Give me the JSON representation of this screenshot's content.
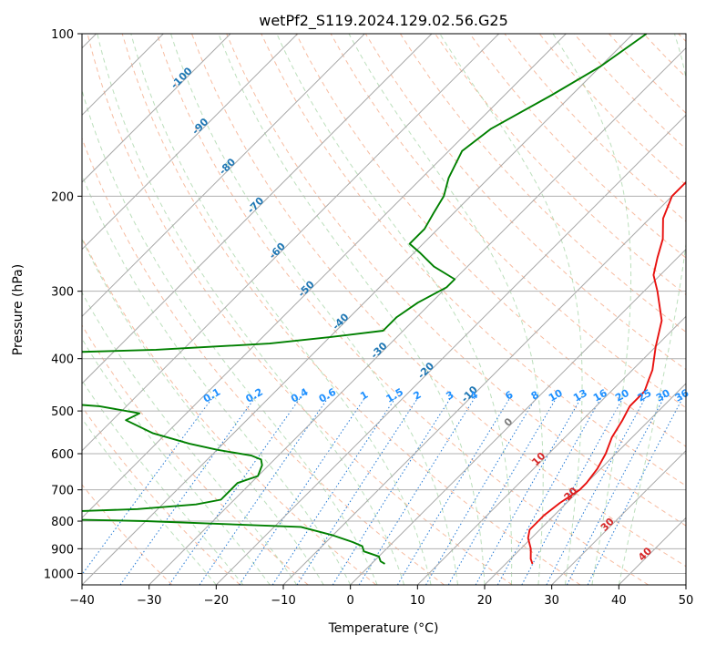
{
  "chart_data": {
    "type": "line",
    "subtype": "skew-T log-p diagram",
    "title": "wetPf2_S119.2024.129.02.56.G25",
    "xlabel": "Temperature (°C)",
    "ylabel": "Pressure (hPa)",
    "xlim": [
      -40,
      50
    ],
    "ylim": [
      1050,
      100
    ],
    "y_scale": "log",
    "x_ticks": [
      -40,
      -30,
      -20,
      -10,
      0,
      10,
      20,
      30,
      40,
      50
    ],
    "y_ticks": [
      100,
      200,
      300,
      400,
      500,
      600,
      700,
      800,
      900,
      1000
    ],
    "tick_labels": {
      "x": [
        "−40",
        "−30",
        "−20",
        "−10",
        "0",
        "10",
        "20",
        "30",
        "40",
        "50"
      ],
      "y": [
        "100",
        "200",
        "300",
        "400",
        "500",
        "600",
        "700",
        "800",
        "900",
        "1000"
      ]
    },
    "grid": true,
    "isotherm_labels": [
      "-100",
      "-90",
      "-80",
      "-70",
      "-60",
      "-50",
      "-40",
      "-30",
      "-20",
      "-10",
      "0",
      "10",
      "20",
      "30",
      "40"
    ],
    "mixing_ratio_labels": [
      "0.1",
      "0.2",
      "0.4",
      "0.6",
      "1",
      "1.5",
      "2",
      "3",
      "4",
      "6",
      "8",
      "10",
      "13",
      "16",
      "20",
      "25",
      "30",
      "36"
    ],
    "series": [
      {
        "role": "temperature",
        "color": "#e8110f",
        "points": [
          [
            100,
            -15
          ],
          [
            115,
            -18
          ],
          [
            130,
            -18
          ],
          [
            150,
            -17
          ],
          [
            165,
            -13
          ],
          [
            185,
            -10
          ],
          [
            200,
            -10
          ],
          [
            220,
            -8
          ],
          [
            240,
            -5
          ],
          [
            260,
            -3
          ],
          [
            280,
            -1
          ],
          [
            300,
            2
          ],
          [
            340,
            7
          ],
          [
            380,
            10
          ],
          [
            420,
            13
          ],
          [
            440,
            14
          ],
          [
            460,
            15
          ],
          [
            490,
            15
          ],
          [
            520,
            16
          ],
          [
            560,
            17
          ],
          [
            600,
            18.5
          ],
          [
            640,
            19.5
          ],
          [
            680,
            20
          ],
          [
            700,
            20
          ],
          [
            740,
            19
          ],
          [
            780,
            18.5
          ],
          [
            800,
            18.5
          ],
          [
            830,
            18.5
          ],
          [
            860,
            19.5
          ],
          [
            900,
            21.5
          ],
          [
            940,
            23
          ],
          [
            960,
            24
          ]
        ]
      },
      {
        "role": "dewpoint",
        "color": "#008000",
        "points": [
          [
            100,
            -38
          ],
          [
            115,
            -40
          ],
          [
            130,
            -43
          ],
          [
            150,
            -47
          ],
          [
            165,
            -48
          ],
          [
            185,
            -46
          ],
          [
            200,
            -44
          ],
          [
            215,
            -43
          ],
          [
            230,
            -42
          ],
          [
            245,
            -42
          ],
          [
            255,
            -39
          ],
          [
            270,
            -35
          ],
          [
            285,
            -30
          ],
          [
            295,
            -30
          ],
          [
            315,
            -32
          ],
          [
            335,
            -33
          ],
          [
            355,
            -33
          ],
          [
            365,
            -40
          ],
          [
            375,
            -48
          ],
          [
            385,
            -64
          ],
          [
            392,
            -85
          ],
          [
            475,
            -80
          ],
          [
            490,
            -64
          ],
          [
            505,
            -57
          ],
          [
            520,
            -58
          ],
          [
            550,
            -52
          ],
          [
            575,
            -45
          ],
          [
            590,
            -40
          ],
          [
            605,
            -34
          ],
          [
            615,
            -32
          ],
          [
            630,
            -31
          ],
          [
            660,
            -30
          ],
          [
            680,
            -32
          ],
          [
            700,
            -32
          ],
          [
            730,
            -32
          ],
          [
            745,
            -35
          ],
          [
            760,
            -43
          ],
          [
            775,
            -62
          ],
          [
            782,
            -85
          ],
          [
            790,
            -62
          ],
          [
            800,
            -40
          ],
          [
            820,
            -16
          ],
          [
            850,
            -10
          ],
          [
            875,
            -6
          ],
          [
            890,
            -4
          ],
          [
            910,
            -3
          ],
          [
            930,
            0
          ],
          [
            950,
            1
          ],
          [
            960,
            2
          ]
        ]
      }
    ]
  }
}
